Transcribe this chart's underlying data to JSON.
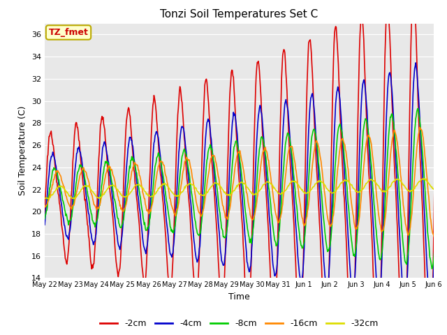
{
  "title": "Tonzi Soil Temperatures Set C",
  "xlabel": "Time",
  "ylabel": "Soil Temperature (C)",
  "ylim": [
    14,
    37
  ],
  "yticks": [
    14,
    16,
    18,
    20,
    22,
    24,
    26,
    28,
    30,
    32,
    34,
    36
  ],
  "annotation_text": "TZ_fmet",
  "annotation_color": "#cc0000",
  "annotation_bg": "#ffffcc",
  "annotation_border": "#bbaa00",
  "background_color": "#e8e8e8",
  "series_names": [
    "-2cm",
    "-4cm",
    "-8cm",
    "-16cm",
    "-32cm"
  ],
  "series_colors": [
    "#dd0000",
    "#0000cc",
    "#00cc00",
    "#ff8800",
    "#dddd00"
  ],
  "series_lw": [
    1.2,
    1.2,
    1.2,
    1.2,
    1.2
  ],
  "n_days": 16,
  "pts_per_day": 48,
  "x_tick_labels": [
    "May 22",
    "May 23",
    "May 24",
    "May 25",
    "May 26",
    "May 27",
    "May 28",
    "May 29",
    "May 30",
    "May 31",
    "Jun 1",
    "Jun 2",
    "Jun 3",
    "Jun 4",
    "Jun 5",
    "Jun 6"
  ],
  "x_tick_positions": [
    0,
    1,
    2,
    3,
    4,
    5,
    6,
    7,
    8,
    9,
    10,
    11,
    12,
    13,
    14,
    15
  ]
}
